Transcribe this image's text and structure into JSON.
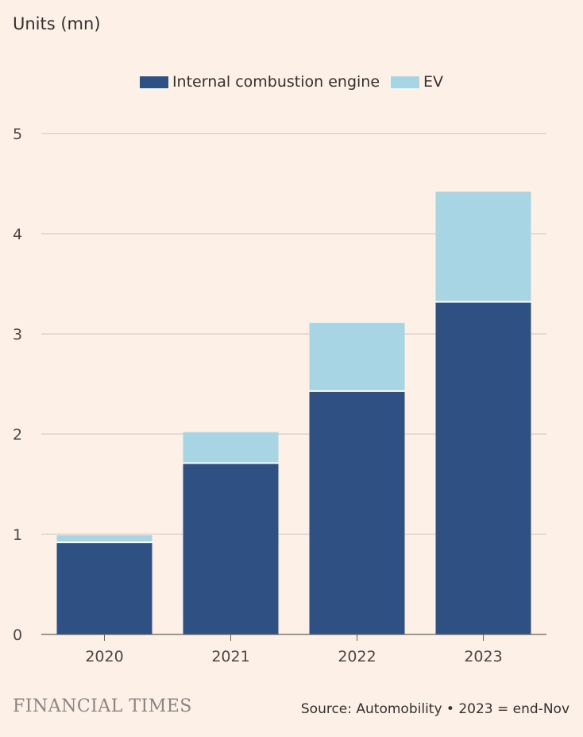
{
  "unit_label": "Units (mn)",
  "legend": [
    {
      "label": "Internal combustion engine",
      "color": "#2E5082"
    },
    {
      "label": "EV",
      "color": "#A8D5E3"
    }
  ],
  "chart_data": {
    "type": "bar",
    "stacked": true,
    "categories": [
      "2020",
      "2021",
      "2022",
      "2023"
    ],
    "series": [
      {
        "name": "Internal combustion engine",
        "color": "#2E5082",
        "values": [
          0.92,
          1.71,
          2.43,
          3.32
        ]
      },
      {
        "name": "EV",
        "color": "#A8D5E3",
        "values": [
          0.07,
          0.31,
          0.68,
          1.1
        ]
      }
    ],
    "ylim": [
      0,
      5
    ],
    "yticks": [
      0,
      1,
      2,
      3,
      4,
      5
    ],
    "ylabel": "Units (mn)",
    "xlabel": "",
    "grid": true,
    "legend_position": "top-center"
  },
  "footer": {
    "brand": "FINANCIAL TIMES",
    "source": "Source: Automobility • 2023 = end-Nov"
  }
}
